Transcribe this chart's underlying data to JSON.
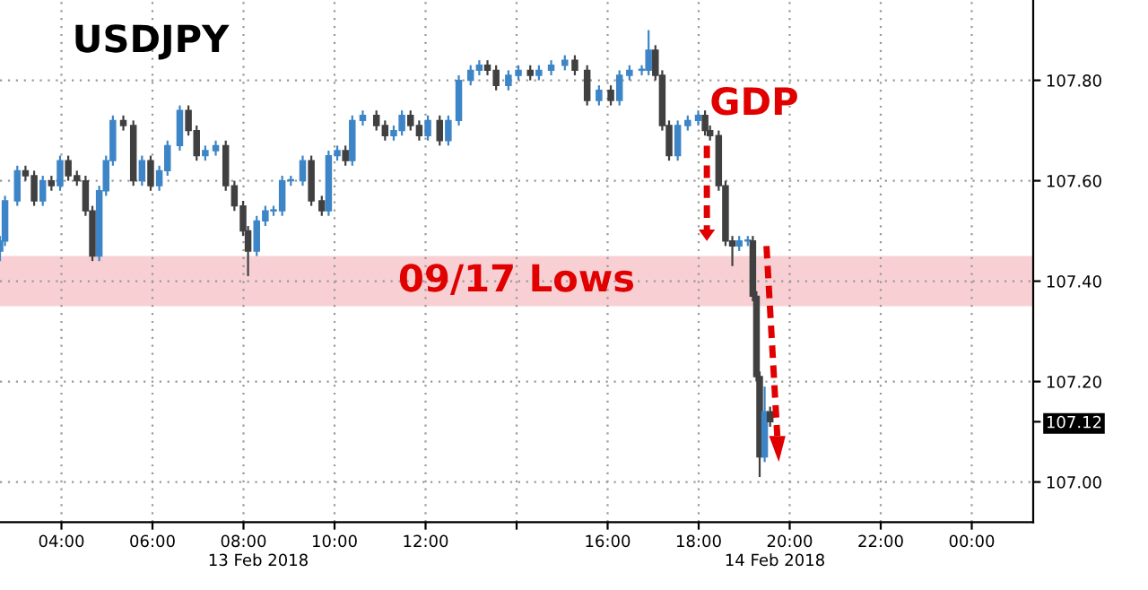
{
  "chart_data": {
    "type": "candlestick",
    "title": "USDJPY",
    "x": [
      2.65,
      2.76,
      3.03,
      3.21,
      3.4,
      3.59,
      3.78,
      3.97,
      4.15,
      4.34,
      4.53,
      4.68,
      4.83,
      4.98,
      5.13,
      5.36,
      5.58,
      5.77,
      5.96,
      6.15,
      6.33,
      6.6,
      6.79,
      6.97,
      7.16,
      7.39,
      7.61,
      7.8,
      7.99,
      8.1,
      8.29,
      8.48,
      8.66,
      8.85,
      9.04,
      9.3,
      9.49,
      9.72,
      9.87,
      10.06,
      10.24,
      10.39,
      10.62,
      10.92,
      11.11,
      11.3,
      11.48,
      11.67,
      11.86,
      12.05,
      12.31,
      12.5,
      12.73,
      12.99,
      13.18,
      13.36,
      13.55,
      13.82,
      14.04,
      14.3,
      14.49,
      14.76,
      15.06,
      15.28,
      15.55,
      15.81,
      16.07,
      16.26,
      16.48,
      16.75,
      16.9,
      17.05,
      17.2,
      17.35,
      17.54,
      17.76,
      17.99,
      18.14,
      18.25,
      18.44,
      18.59,
      18.74,
      18.89,
      19.08,
      19.19,
      19.27,
      19.34,
      19.45,
      19.57
    ],
    "ohlc": [
      [
        107.46,
        107.49,
        107.44,
        107.48
      ],
      [
        107.48,
        107.57,
        107.47,
        107.56
      ],
      [
        107.56,
        107.63,
        107.55,
        107.62
      ],
      [
        107.62,
        107.63,
        107.6,
        107.61
      ],
      [
        107.61,
        107.62,
        107.55,
        107.56
      ],
      [
        107.56,
        107.61,
        107.55,
        107.6
      ],
      [
        107.6,
        107.61,
        107.58,
        107.59
      ],
      [
        107.59,
        107.65,
        107.58,
        107.64
      ],
      [
        107.64,
        107.65,
        107.6,
        107.61
      ],
      [
        107.61,
        107.62,
        107.59,
        107.6
      ],
      [
        107.6,
        107.61,
        107.53,
        107.54
      ],
      [
        107.54,
        107.55,
        107.44,
        107.45
      ],
      [
        107.45,
        107.59,
        107.44,
        107.58
      ],
      [
        107.58,
        107.65,
        107.57,
        107.64
      ],
      [
        107.64,
        107.73,
        107.63,
        107.72
      ],
      [
        107.72,
        107.73,
        107.7,
        107.71
      ],
      [
        107.71,
        107.72,
        107.59,
        107.6
      ],
      [
        107.6,
        107.65,
        107.59,
        107.64
      ],
      [
        107.64,
        107.65,
        107.58,
        107.59
      ],
      [
        107.59,
        107.63,
        107.58,
        107.62
      ],
      [
        107.62,
        107.68,
        107.61,
        107.67
      ],
      [
        107.67,
        107.75,
        107.66,
        107.74
      ],
      [
        107.74,
        107.75,
        107.69,
        107.7
      ],
      [
        107.7,
        107.71,
        107.64,
        107.65
      ],
      [
        107.65,
        107.67,
        107.64,
        107.66
      ],
      [
        107.66,
        107.68,
        107.65,
        107.67
      ],
      [
        107.67,
        107.68,
        107.58,
        107.59
      ],
      [
        107.59,
        107.6,
        107.54,
        107.55
      ],
      [
        107.55,
        107.56,
        107.49,
        107.5
      ],
      [
        107.5,
        107.51,
        107.41,
        107.46
      ],
      [
        107.46,
        107.53,
        107.45,
        107.52
      ],
      [
        107.52,
        107.55,
        107.51,
        107.54
      ],
      [
        107.54,
        107.55,
        107.53,
        107.54
      ],
      [
        107.54,
        107.61,
        107.53,
        107.6
      ],
      [
        107.6,
        107.61,
        107.59,
        107.6
      ],
      [
        107.6,
        107.65,
        107.59,
        107.64
      ],
      [
        107.64,
        107.65,
        107.55,
        107.56
      ],
      [
        107.56,
        107.57,
        107.53,
        107.54
      ],
      [
        107.54,
        107.66,
        107.53,
        107.65
      ],
      [
        107.65,
        107.67,
        107.64,
        107.66
      ],
      [
        107.66,
        107.67,
        107.63,
        107.64
      ],
      [
        107.64,
        107.73,
        107.63,
        107.72
      ],
      [
        107.72,
        107.74,
        107.71,
        107.73
      ],
      [
        107.73,
        107.74,
        107.7,
        107.71
      ],
      [
        107.71,
        107.72,
        107.68,
        107.69
      ],
      [
        107.69,
        107.71,
        107.68,
        107.7
      ],
      [
        107.7,
        107.74,
        107.69,
        107.73
      ],
      [
        107.73,
        107.74,
        107.7,
        107.71
      ],
      [
        107.71,
        107.72,
        107.68,
        107.69
      ],
      [
        107.69,
        107.73,
        107.68,
        107.72
      ],
      [
        107.72,
        107.73,
        107.67,
        107.68
      ],
      [
        107.68,
        107.73,
        107.67,
        107.72
      ],
      [
        107.72,
        107.81,
        107.71,
        107.8
      ],
      [
        107.8,
        107.83,
        107.79,
        107.82
      ],
      [
        107.82,
        107.84,
        107.81,
        107.83
      ],
      [
        107.83,
        107.84,
        107.81,
        107.82
      ],
      [
        107.82,
        107.83,
        107.78,
        107.79
      ],
      [
        107.79,
        107.82,
        107.78,
        107.81
      ],
      [
        107.81,
        107.83,
        107.8,
        107.82
      ],
      [
        107.82,
        107.83,
        107.8,
        107.81
      ],
      [
        107.81,
        107.83,
        107.8,
        107.82
      ],
      [
        107.82,
        107.84,
        107.81,
        107.83
      ],
      [
        107.83,
        107.85,
        107.82,
        107.84
      ],
      [
        107.84,
        107.85,
        107.81,
        107.82
      ],
      [
        107.82,
        107.83,
        107.75,
        107.76
      ],
      [
        107.76,
        107.79,
        107.75,
        107.78
      ],
      [
        107.78,
        107.79,
        107.75,
        107.76
      ],
      [
        107.76,
        107.82,
        107.75,
        107.81
      ],
      [
        107.81,
        107.83,
        107.8,
        107.82
      ],
      [
        107.82,
        107.83,
        107.81,
        107.82
      ],
      [
        107.82,
        107.9,
        107.81,
        107.86
      ],
      [
        107.86,
        107.87,
        107.8,
        107.81
      ],
      [
        107.81,
        107.82,
        107.7,
        107.71
      ],
      [
        107.71,
        107.72,
        107.64,
        107.65
      ],
      [
        107.65,
        107.72,
        107.64,
        107.71
      ],
      [
        107.71,
        107.73,
        107.7,
        107.72
      ],
      [
        107.72,
        107.74,
        107.71,
        107.73
      ],
      [
        107.73,
        107.74,
        107.69,
        107.7
      ],
      [
        107.7,
        107.71,
        107.68,
        107.69
      ],
      [
        107.69,
        107.7,
        107.58,
        107.59
      ],
      [
        107.59,
        107.6,
        107.47,
        107.48
      ],
      [
        107.48,
        107.49,
        107.43,
        107.47
      ],
      [
        107.47,
        107.49,
        107.46,
        107.48
      ],
      [
        107.48,
        107.49,
        107.47,
        107.48
      ],
      [
        107.48,
        107.49,
        107.36,
        107.37
      ],
      [
        107.37,
        107.38,
        107.2,
        107.21
      ],
      [
        107.21,
        107.22,
        107.01,
        107.05
      ],
      [
        107.05,
        107.19,
        107.04,
        107.14
      ],
      [
        107.14,
        107.15,
        107.11,
        107.12
      ]
    ],
    "colors": [
      "#3d85c6",
      "#3d85c6",
      "#3d85c6",
      "#404040",
      "#404040",
      "#3d85c6",
      "#404040",
      "#3d85c6",
      "#404040",
      "#404040",
      "#404040",
      "#404040",
      "#3d85c6",
      "#3d85c6",
      "#3d85c6",
      "#404040",
      "#404040",
      "#3d85c6",
      "#404040",
      "#3d85c6",
      "#3d85c6",
      "#3d85c6",
      "#404040",
      "#404040",
      "#3d85c6",
      "#3d85c6",
      "#404040",
      "#404040",
      "#404040",
      "#404040",
      "#3d85c6",
      "#3d85c6",
      "#3d85c6",
      "#3d85c6",
      "#3d85c6",
      "#3d85c6",
      "#404040",
      "#404040",
      "#3d85c6",
      "#3d85c6",
      "#404040",
      "#3d85c6",
      "#3d85c6",
      "#404040",
      "#404040",
      "#3d85c6",
      "#3d85c6",
      "#404040",
      "#404040",
      "#3d85c6",
      "#404040",
      "#3d85c6",
      "#3d85c6",
      "#3d85c6",
      "#3d85c6",
      "#404040",
      "#404040",
      "#3d85c6",
      "#3d85c6",
      "#404040",
      "#3d85c6",
      "#3d85c6",
      "#3d85c6",
      "#404040",
      "#404040",
      "#3d85c6",
      "#404040",
      "#3d85c6",
      "#3d85c6",
      "#3d85c6",
      "#3d85c6",
      "#404040",
      "#404040",
      "#404040",
      "#3d85c6",
      "#3d85c6",
      "#3d85c6",
      "#404040",
      "#404040",
      "#404040",
      "#404040",
      "#404040",
      "#3d85c6",
      "#3d85c6",
      "#404040",
      "#404040",
      "#404040",
      "#3d85c6",
      "#404040"
    ],
    "xlim": [
      2.65,
      25.35
    ],
    "xticks": [
      {
        "value": 4,
        "label": "04:00"
      },
      {
        "value": 6,
        "label": "06:00"
      },
      {
        "value": 8,
        "label": "08:00"
      },
      {
        "value": 10,
        "label": "10:00"
      },
      {
        "value": 12,
        "label": "12:00"
      },
      {
        "value": 14,
        "label": null
      },
      {
        "value": 16,
        "label": "16:00"
      },
      {
        "value": 18,
        "label": "18:00"
      },
      {
        "value": 20,
        "label": "20:00"
      },
      {
        "value": 22,
        "label": "22:00"
      },
      {
        "value": 24,
        "label": "00:00"
      }
    ],
    "ylim": [
      106.92,
      107.96
    ],
    "yticks": [
      {
        "value": 107.0,
        "label": "107.00"
      },
      {
        "value": 107.2,
        "label": "107.20"
      },
      {
        "value": 107.4,
        "label": "107.40"
      },
      {
        "value": 107.6,
        "label": "107.60"
      },
      {
        "value": 107.8,
        "label": "107.80"
      },
      {
        "value": 107.12,
        "label": "107.12"
      }
    ],
    "bands": [
      {
        "axis": "y",
        "from": 107.35,
        "to": 107.45,
        "label": "09/17 Lows",
        "color": "#f8d0d4"
      }
    ],
    "annotations": [
      "GDP",
      "13 Feb 2018",
      "14 Feb 2018"
    ],
    "grid": true
  }
}
